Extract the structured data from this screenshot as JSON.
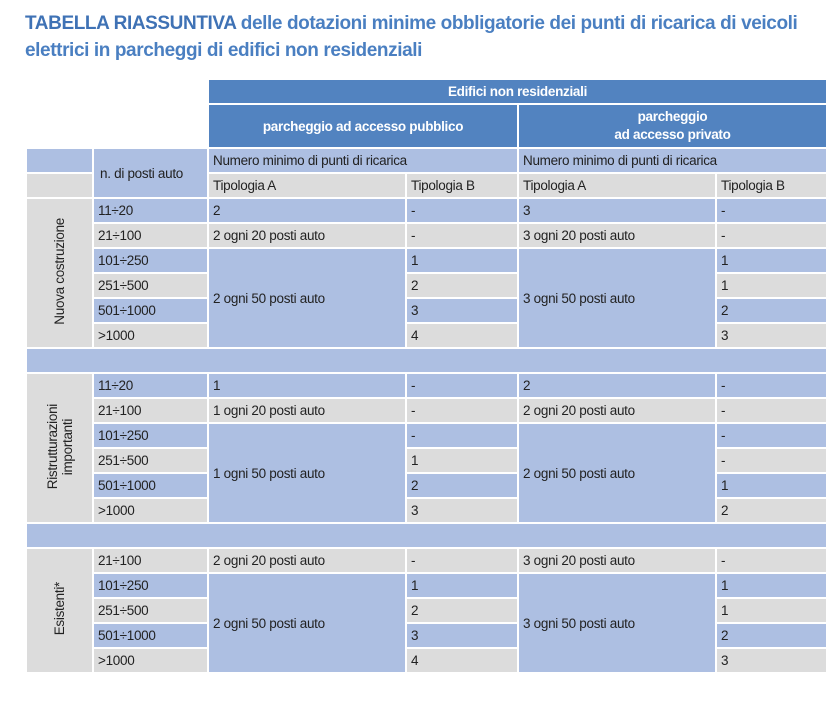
{
  "title": {
    "strong": "TABELLA RIASSUNTIVA",
    "rest": " delle dotazioni minime obbligatorie dei punti di ricarica di veicoli elettrici in parcheggi di edifici non residenziali"
  },
  "header": {
    "group": "Edifici non residenziali",
    "public": "parcheggio ad accesso pubblico",
    "private": "parcheggio\nad accesso privato",
    "posti": "n. di posti auto",
    "numero_pub": "Numero minimo di punti di ricarica",
    "numero_priv": "Numero minimo di punti di ricarica",
    "tip_a_pub": "Tipologia A",
    "tip_b_pub": "Tipologia B",
    "tip_a_priv": "Tipologia A",
    "tip_b_priv": "Tipologia B"
  },
  "colors": {
    "dark": "#5283c0",
    "light": "#adbfe2",
    "gray": "#dcdcdc",
    "title": "#4a7fc1"
  },
  "sections": [
    {
      "label": "Nuova costruzione",
      "rows": [
        {
          "posti": "11÷20",
          "pub_b": "-",
          "priv_b": "-"
        },
        {
          "posti": "21÷100",
          "pub_b": "-",
          "priv_b": "-"
        },
        {
          "posti": "101÷250",
          "pub_b": "1",
          "priv_b": "1"
        },
        {
          "posti": "251÷500",
          "pub_b": "2",
          "priv_b": "1"
        },
        {
          "posti": "501÷1000",
          "pub_b": "3",
          "priv_b": "2"
        },
        {
          "posti": ">1000",
          "pub_b": "4",
          "priv_b": "3"
        }
      ],
      "pub_a": [
        {
          "text": "2",
          "span": 1
        },
        {
          "text": "2 ogni 20 posti auto",
          "span": 1
        },
        {
          "text": "2 ogni 50 posti auto",
          "span": 4
        }
      ],
      "priv_a": [
        {
          "text": "3",
          "span": 1
        },
        {
          "text": "3 ogni 20 posti auto",
          "span": 1
        },
        {
          "text": "3 ogni 50 posti auto",
          "span": 4
        }
      ]
    },
    {
      "label": "Ristrutturazioni\nimportanti",
      "rows": [
        {
          "posti": "11÷20",
          "pub_b": "-",
          "priv_b": "-"
        },
        {
          "posti": "21÷100",
          "pub_b": "-",
          "priv_b": "-"
        },
        {
          "posti": "101÷250",
          "pub_b": "-",
          "priv_b": "-"
        },
        {
          "posti": "251÷500",
          "pub_b": "1",
          "priv_b": "-"
        },
        {
          "posti": "501÷1000",
          "pub_b": "2",
          "priv_b": "1"
        },
        {
          "posti": ">1000",
          "pub_b": "3",
          "priv_b": "2"
        }
      ],
      "pub_a": [
        {
          "text": "1",
          "span": 1
        },
        {
          "text": "1 ogni 20 posti auto",
          "span": 1
        },
        {
          "text": "1 ogni 50 posti auto",
          "span": 4
        }
      ],
      "priv_a": [
        {
          "text": "2",
          "span": 1
        },
        {
          "text": "2 ogni 20 posti auto",
          "span": 1
        },
        {
          "text": "2 ogni 50 posti auto",
          "span": 4
        }
      ]
    },
    {
      "label": "Esistenti*",
      "rows": [
        {
          "posti": "21÷100",
          "pub_b": "-",
          "priv_b": "-"
        },
        {
          "posti": "101÷250",
          "pub_b": "1",
          "priv_b": "1"
        },
        {
          "posti": "251÷500",
          "pub_b": "2",
          "priv_b": "1"
        },
        {
          "posti": "501÷1000",
          "pub_b": "3",
          "priv_b": "2"
        },
        {
          "posti": ">1000",
          "pub_b": "4",
          "priv_b": "3"
        }
      ],
      "pub_a": [
        {
          "text": "2 ogni 20 posti auto",
          "span": 1
        },
        {
          "text": "2 ogni 50 posti auto",
          "span": 4
        }
      ],
      "priv_a": [
        {
          "text": "3 ogni 20 posti auto",
          "span": 1
        },
        {
          "text": "3 ogni 50 posti auto",
          "span": 4
        }
      ]
    }
  ]
}
